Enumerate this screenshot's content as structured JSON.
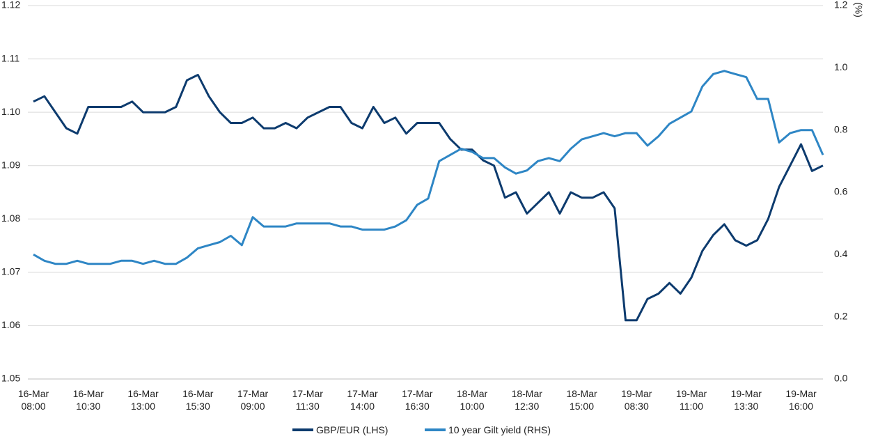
{
  "chart_data": {
    "type": "line",
    "categories": [
      "16-Mar 08:00",
      null,
      null,
      null,
      null,
      "16-Mar 10:30",
      null,
      null,
      null,
      null,
      "16-Mar 13:00",
      null,
      null,
      null,
      null,
      "16-Mar 15:30",
      null,
      null,
      null,
      null,
      "17-Mar 09:00",
      null,
      null,
      null,
      null,
      "17-Mar 11:30",
      null,
      null,
      null,
      null,
      "17-Mar 14:00",
      null,
      null,
      null,
      null,
      "17-Mar 16:30",
      null,
      null,
      null,
      null,
      "18-Mar 10:00",
      null,
      null,
      null,
      null,
      "18-Mar 12:30",
      null,
      null,
      null,
      null,
      "18-Mar 15:00",
      null,
      null,
      null,
      null,
      "19-Mar 08:30",
      null,
      null,
      null,
      null,
      "19-Mar 11:00",
      null,
      null,
      null,
      null,
      "19-Mar 13:30",
      null,
      null,
      null,
      null,
      "19-Mar 16:00",
      null,
      null
    ],
    "series": [
      {
        "name": "GBP/EUR (LHS)",
        "color": "#0d3b6e",
        "axis": "y",
        "values": [
          1.102,
          1.103,
          1.1,
          1.097,
          1.096,
          1.101,
          1.101,
          1.101,
          1.101,
          1.102,
          1.1,
          1.1,
          1.1,
          1.101,
          1.106,
          1.107,
          1.103,
          1.1,
          1.098,
          1.098,
          1.099,
          1.097,
          1.097,
          1.098,
          1.097,
          1.099,
          1.1,
          1.101,
          1.101,
          1.098,
          1.097,
          1.101,
          1.098,
          1.099,
          1.096,
          1.098,
          1.098,
          1.098,
          1.095,
          1.093,
          1.093,
          1.091,
          1.09,
          1.084,
          1.085,
          1.081,
          1.083,
          1.085,
          1.081,
          1.085,
          1.084,
          1.084,
          1.085,
          1.082,
          1.061,
          1.061,
          1.065,
          1.066,
          1.068,
          1.066,
          1.069,
          1.074,
          1.077,
          1.079,
          1.076,
          1.075,
          1.076,
          1.08,
          1.086,
          1.09,
          1.094,
          1.089,
          1.09
        ]
      },
      {
        "name": "10 year Gilt yield (RHS)",
        "color": "#2e86c5",
        "axis": "y2",
        "values": [
          0.4,
          0.38,
          0.37,
          0.37,
          0.38,
          0.37,
          0.37,
          0.37,
          0.38,
          0.38,
          0.37,
          0.38,
          0.37,
          0.37,
          0.39,
          0.42,
          0.43,
          0.44,
          0.46,
          0.43,
          0.52,
          0.49,
          0.49,
          0.49,
          0.5,
          0.5,
          0.5,
          0.5,
          0.49,
          0.49,
          0.48,
          0.48,
          0.48,
          0.49,
          0.51,
          0.56,
          0.58,
          0.7,
          0.72,
          0.74,
          0.73,
          0.71,
          0.71,
          0.68,
          0.66,
          0.67,
          0.7,
          0.71,
          0.7,
          0.74,
          0.77,
          0.78,
          0.79,
          0.78,
          0.79,
          0.79,
          0.75,
          0.78,
          0.82,
          0.84,
          0.86,
          0.94,
          0.98,
          0.99,
          0.98,
          0.97,
          0.9,
          0.9,
          0.76,
          0.79,
          0.8,
          0.8,
          0.72
        ]
      }
    ],
    "ylim": [
      1.05,
      1.12
    ],
    "yticks": [
      1.05,
      1.06,
      1.07,
      1.08,
      1.09,
      {
        "value": 1.1,
        "label": "1.10"
      },
      1.11,
      1.12
    ],
    "y2lim": [
      0,
      1.2
    ],
    "y2ticks": [
      {
        "value": 0,
        "label": "0.0"
      },
      0.2,
      0.4,
      0.6,
      0.8,
      {
        "value": 1,
        "label": "1.0"
      },
      1.2
    ],
    "y2label": "(%)",
    "grid": true,
    "legend": "bottom"
  }
}
